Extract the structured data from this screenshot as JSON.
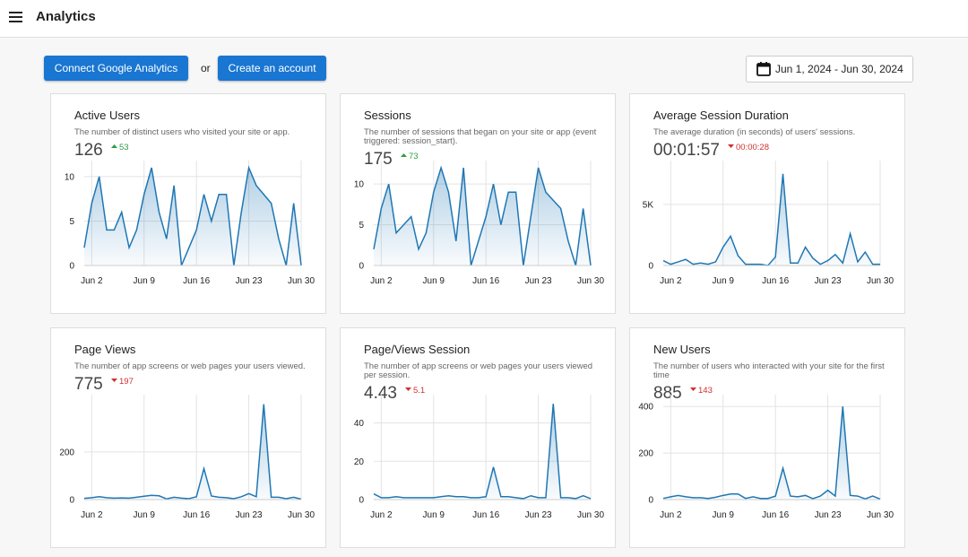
{
  "header": {
    "title": "Analytics"
  },
  "toolbar": {
    "connect": "Connect Google Analytics",
    "or": "or",
    "create": "Create an account",
    "date_range": "Jun 1, 2024 - Jun 30, 2024"
  },
  "cards": [
    {
      "title": "Active Users",
      "description": "The number of distinct users who visited your site or app.",
      "value": 126,
      "delta": 53,
      "trend": "up",
      "chart": {
        "type": "area",
        "color": "#1f77b4",
        "categories": [
          null,
          "Jun 2",
          null,
          null,
          null,
          null,
          null,
          null,
          "Jun 9",
          null,
          null,
          null,
          null,
          null,
          null,
          "Jun 16",
          null,
          null,
          null,
          null,
          null,
          null,
          "Jun 23",
          null,
          null,
          null,
          null,
          null,
          null,
          "Jun 30"
        ],
        "values": [
          2,
          7,
          10,
          4,
          4,
          6,
          2,
          4,
          8,
          11,
          6,
          3,
          9,
          0,
          2,
          4,
          8,
          5,
          8,
          8,
          0,
          6,
          11,
          9,
          8,
          7,
          3,
          0,
          7,
          0
        ],
        "ylim": [
          0,
          11
        ],
        "yticks": [
          0,
          5,
          10
        ]
      }
    },
    {
      "title": "Sessions",
      "description": "The number of sessions that began on your site or app (event triggered: session_start).",
      "value": 175,
      "delta": 73,
      "trend": "up",
      "chart": {
        "type": "area",
        "color": "#1f77b4",
        "categories": [
          null,
          "Jun 2",
          null,
          null,
          null,
          null,
          null,
          null,
          "Jun 9",
          null,
          null,
          null,
          null,
          null,
          null,
          "Jun 16",
          null,
          null,
          null,
          null,
          null,
          null,
          "Jun 23",
          null,
          null,
          null,
          null,
          null,
          null,
          "Jun 30"
        ],
        "values": [
          2,
          7,
          10,
          4,
          5,
          6,
          2,
          4,
          9,
          12,
          9,
          3,
          12,
          0,
          3,
          6,
          10,
          5,
          9,
          9,
          0,
          6,
          12,
          9,
          8,
          7,
          3,
          0,
          7,
          0
        ],
        "ylim": [
          0,
          12
        ],
        "yticks": [
          0,
          5,
          10
        ]
      }
    },
    {
      "title": "Average Session Duration",
      "description": "The average duration (in seconds) of users' sessions.",
      "value": "00:01:57",
      "delta": "00:00:28",
      "trend": "down",
      "chart": {
        "type": "area",
        "color": "#1f77b4",
        "categories": [
          null,
          "Jun 2",
          null,
          null,
          null,
          null,
          null,
          null,
          "Jun 9",
          null,
          null,
          null,
          null,
          null,
          null,
          "Jun 16",
          null,
          null,
          null,
          null,
          null,
          null,
          "Jun 23",
          null,
          null,
          null,
          null,
          null,
          null,
          "Jun 30"
        ],
        "values": [
          400,
          100,
          300,
          500,
          100,
          200,
          100,
          300,
          1500,
          2400,
          800,
          100,
          100,
          100,
          0,
          700,
          7500,
          200,
          200,
          1500,
          600,
          100,
          400,
          900,
          200,
          2600,
          300,
          1100,
          100,
          100
        ],
        "ylim": [
          0,
          8000
        ],
        "yticks": [
          0,
          {
            "value": 5000,
            "label": "5K"
          }
        ]
      }
    },
    {
      "title": "Page Views",
      "description": "The number of app screens or web pages your users viewed.",
      "value": 775,
      "delta": 197,
      "trend": "down",
      "chart": {
        "type": "area",
        "color": "#1f77b4",
        "categories": [
          null,
          "Jun 2",
          null,
          null,
          null,
          null,
          null,
          null,
          "Jun 9",
          null,
          null,
          null,
          null,
          null,
          null,
          "Jun 16",
          null,
          null,
          null,
          null,
          null,
          null,
          "Jun 23",
          null,
          null,
          null,
          null,
          null,
          null,
          "Jun 30"
        ],
        "values": [
          5,
          8,
          12,
          8,
          6,
          7,
          6,
          10,
          14,
          18,
          16,
          3,
          10,
          6,
          4,
          12,
          130,
          15,
          10,
          8,
          4,
          12,
          25,
          12,
          400,
          10,
          10,
          4,
          10,
          2
        ],
        "ylim": [
          0,
          410
        ],
        "yticks": [
          0,
          200
        ]
      }
    },
    {
      "title": "Page/Views Session",
      "description": "The number of app screens or web pages your users viewed per session.",
      "value": 4.43,
      "delta": 5.1,
      "trend": "down",
      "chart": {
        "type": "area",
        "color": "#1f77b4",
        "categories": [
          null,
          "Jun 2",
          null,
          null,
          null,
          null,
          null,
          null,
          "Jun 9",
          null,
          null,
          null,
          null,
          null,
          null,
          "Jun 16",
          null,
          null,
          null,
          null,
          null,
          null,
          "Jun 23",
          null,
          null,
          null,
          null,
          null,
          null,
          "Jun 30"
        ],
        "values": [
          3,
          1,
          1,
          1.5,
          1,
          1,
          1,
          1,
          1,
          1.5,
          2,
          1.5,
          1.5,
          1,
          1,
          1.5,
          17,
          1.5,
          1.5,
          1,
          0.5,
          2,
          1,
          1,
          50,
          1,
          1,
          0.5,
          2,
          0.5
        ],
        "ylim": [
          0,
          51
        ],
        "yticks": [
          0,
          20,
          40
        ]
      }
    },
    {
      "title": "New Users",
      "description": "The number of users who interacted with your site for the first time",
      "value": 885,
      "delta": 143,
      "trend": "down",
      "chart": {
        "type": "area",
        "color": "#1f77b4",
        "categories": [
          null,
          "Jun 2",
          null,
          null,
          null,
          null,
          null,
          null,
          "Jun 9",
          null,
          null,
          null,
          null,
          null,
          null,
          "Jun 16",
          null,
          null,
          null,
          null,
          null,
          null,
          "Jun 23",
          null,
          null,
          null,
          null,
          null,
          null,
          "Jun 30"
        ],
        "values": [
          5,
          12,
          18,
          12,
          8,
          8,
          5,
          10,
          18,
          24,
          24,
          5,
          12,
          5,
          5,
          15,
          135,
          15,
          12,
          18,
          4,
          15,
          40,
          15,
          400,
          18,
          15,
          3,
          15,
          2
        ],
        "ylim": [
          0,
          420
        ],
        "yticks": [
          0,
          200,
          400
        ]
      }
    }
  ]
}
